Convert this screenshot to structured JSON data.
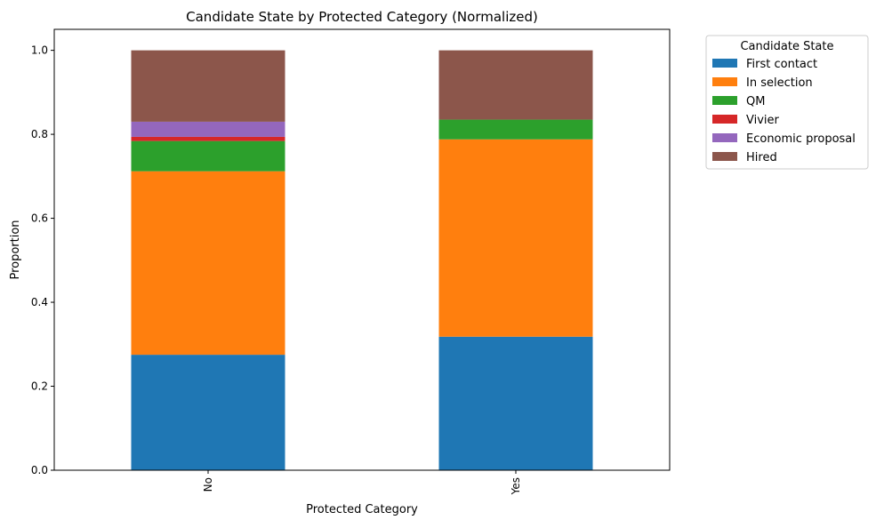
{
  "chart_data": {
    "type": "bar",
    "stacked": true,
    "title": "Candidate State by Protected Category (Normalized)",
    "xlabel": "Protected Category",
    "ylabel": "Proportion",
    "categories": [
      "No",
      "Yes"
    ],
    "ylim": [
      0,
      1.05
    ],
    "yticks": [
      "0.0",
      "0.2",
      "0.4",
      "0.6",
      "0.8",
      "1.0"
    ],
    "ytick_values": [
      0,
      0.2,
      0.4,
      0.6,
      0.8,
      1.0
    ],
    "grid": false,
    "legend": {
      "title": "Candidate State",
      "placement": "outside-right-top"
    },
    "series": [
      {
        "name": "First contact",
        "color": "#1f77b4",
        "values": [
          0.275,
          0.318
        ]
      },
      {
        "name": "In selection",
        "color": "#ff7f0e",
        "values": [
          0.437,
          0.47
        ]
      },
      {
        "name": "QM",
        "color": "#2ca02c",
        "values": [
          0.072,
          0.047
        ]
      },
      {
        "name": "Vivier",
        "color": "#d62728",
        "values": [
          0.01,
          0.0
        ]
      },
      {
        "name": "Economic proposal",
        "color": "#9467bd",
        "values": [
          0.036,
          0.0
        ]
      },
      {
        "name": "Hired",
        "color": "#8c564b",
        "values": [
          0.17,
          0.165
        ]
      }
    ]
  }
}
